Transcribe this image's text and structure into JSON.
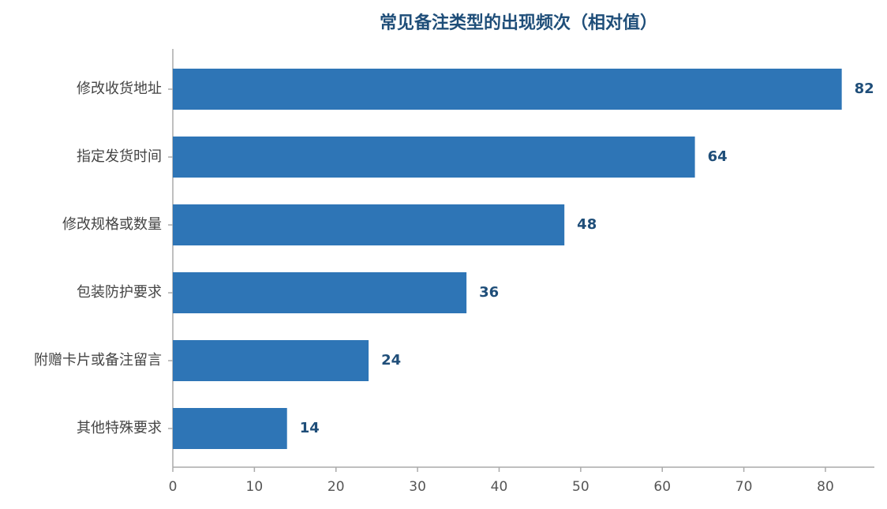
{
  "chart_data": {
    "type": "bar",
    "orientation": "horizontal",
    "title": "常见备注类型的出现频次（相对值）",
    "categories": [
      "修改收货地址",
      "指定发货时间",
      "修改规格或数量",
      "包装防护要求",
      "附赠卡片或备注留言",
      "其他特殊要求"
    ],
    "values": [
      82,
      64,
      48,
      36,
      24,
      14
    ],
    "color": "#2e75b6",
    "xlim": [
      0,
      86
    ],
    "xticks": [
      0,
      10,
      20,
      30,
      40,
      50,
      60,
      70,
      80
    ],
    "grid": false
  }
}
